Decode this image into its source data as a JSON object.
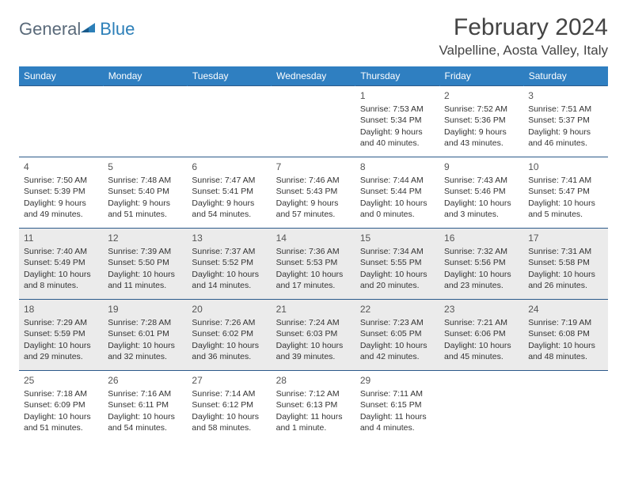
{
  "brand": {
    "part1": "General",
    "part2": "Blue"
  },
  "title": "February 2024",
  "location": "Valpelline, Aosta Valley, Italy",
  "colors": {
    "header_bg": "#2f7fc1",
    "header_text": "#ffffff",
    "rule": "#2c5a8a",
    "shaded_row": "#ebebeb",
    "body_text": "#333333",
    "logo_gray": "#5a6a7a",
    "logo_blue": "#2c7fb8"
  },
  "typography": {
    "title_fontsize": 30,
    "location_fontsize": 17,
    "dayheader_fontsize": 12,
    "cell_fontsize": 10.5
  },
  "weekdays": [
    "Sunday",
    "Monday",
    "Tuesday",
    "Wednesday",
    "Thursday",
    "Friday",
    "Saturday"
  ],
  "weeks": [
    {
      "shaded": false,
      "days": [
        null,
        null,
        null,
        null,
        {
          "n": "1",
          "sunrise": "7:53 AM",
          "sunset": "5:34 PM",
          "daylight": "9 hours and 40 minutes."
        },
        {
          "n": "2",
          "sunrise": "7:52 AM",
          "sunset": "5:36 PM",
          "daylight": "9 hours and 43 minutes."
        },
        {
          "n": "3",
          "sunrise": "7:51 AM",
          "sunset": "5:37 PM",
          "daylight": "9 hours and 46 minutes."
        }
      ]
    },
    {
      "shaded": false,
      "days": [
        {
          "n": "4",
          "sunrise": "7:50 AM",
          "sunset": "5:39 PM",
          "daylight": "9 hours and 49 minutes."
        },
        {
          "n": "5",
          "sunrise": "7:48 AM",
          "sunset": "5:40 PM",
          "daylight": "9 hours and 51 minutes."
        },
        {
          "n": "6",
          "sunrise": "7:47 AM",
          "sunset": "5:41 PM",
          "daylight": "9 hours and 54 minutes."
        },
        {
          "n": "7",
          "sunrise": "7:46 AM",
          "sunset": "5:43 PM",
          "daylight": "9 hours and 57 minutes."
        },
        {
          "n": "8",
          "sunrise": "7:44 AM",
          "sunset": "5:44 PM",
          "daylight": "10 hours and 0 minutes."
        },
        {
          "n": "9",
          "sunrise": "7:43 AM",
          "sunset": "5:46 PM",
          "daylight": "10 hours and 3 minutes."
        },
        {
          "n": "10",
          "sunrise": "7:41 AM",
          "sunset": "5:47 PM",
          "daylight": "10 hours and 5 minutes."
        }
      ]
    },
    {
      "shaded": true,
      "days": [
        {
          "n": "11",
          "sunrise": "7:40 AM",
          "sunset": "5:49 PM",
          "daylight": "10 hours and 8 minutes."
        },
        {
          "n": "12",
          "sunrise": "7:39 AM",
          "sunset": "5:50 PM",
          "daylight": "10 hours and 11 minutes."
        },
        {
          "n": "13",
          "sunrise": "7:37 AM",
          "sunset": "5:52 PM",
          "daylight": "10 hours and 14 minutes."
        },
        {
          "n": "14",
          "sunrise": "7:36 AM",
          "sunset": "5:53 PM",
          "daylight": "10 hours and 17 minutes."
        },
        {
          "n": "15",
          "sunrise": "7:34 AM",
          "sunset": "5:55 PM",
          "daylight": "10 hours and 20 minutes."
        },
        {
          "n": "16",
          "sunrise": "7:32 AM",
          "sunset": "5:56 PM",
          "daylight": "10 hours and 23 minutes."
        },
        {
          "n": "17",
          "sunrise": "7:31 AM",
          "sunset": "5:58 PM",
          "daylight": "10 hours and 26 minutes."
        }
      ]
    },
    {
      "shaded": true,
      "days": [
        {
          "n": "18",
          "sunrise": "7:29 AM",
          "sunset": "5:59 PM",
          "daylight": "10 hours and 29 minutes."
        },
        {
          "n": "19",
          "sunrise": "7:28 AM",
          "sunset": "6:01 PM",
          "daylight": "10 hours and 32 minutes."
        },
        {
          "n": "20",
          "sunrise": "7:26 AM",
          "sunset": "6:02 PM",
          "daylight": "10 hours and 36 minutes."
        },
        {
          "n": "21",
          "sunrise": "7:24 AM",
          "sunset": "6:03 PM",
          "daylight": "10 hours and 39 minutes."
        },
        {
          "n": "22",
          "sunrise": "7:23 AM",
          "sunset": "6:05 PM",
          "daylight": "10 hours and 42 minutes."
        },
        {
          "n": "23",
          "sunrise": "7:21 AM",
          "sunset": "6:06 PM",
          "daylight": "10 hours and 45 minutes."
        },
        {
          "n": "24",
          "sunrise": "7:19 AM",
          "sunset": "6:08 PM",
          "daylight": "10 hours and 48 minutes."
        }
      ]
    },
    {
      "shaded": false,
      "days": [
        {
          "n": "25",
          "sunrise": "7:18 AM",
          "sunset": "6:09 PM",
          "daylight": "10 hours and 51 minutes."
        },
        {
          "n": "26",
          "sunrise": "7:16 AM",
          "sunset": "6:11 PM",
          "daylight": "10 hours and 54 minutes."
        },
        {
          "n": "27",
          "sunrise": "7:14 AM",
          "sunset": "6:12 PM",
          "daylight": "10 hours and 58 minutes."
        },
        {
          "n": "28",
          "sunrise": "7:12 AM",
          "sunset": "6:13 PM",
          "daylight": "11 hours and 1 minute."
        },
        {
          "n": "29",
          "sunrise": "7:11 AM",
          "sunset": "6:15 PM",
          "daylight": "11 hours and 4 minutes."
        },
        null,
        null
      ]
    }
  ],
  "labels": {
    "sunrise": "Sunrise:",
    "sunset": "Sunset:",
    "daylight": "Daylight:"
  }
}
